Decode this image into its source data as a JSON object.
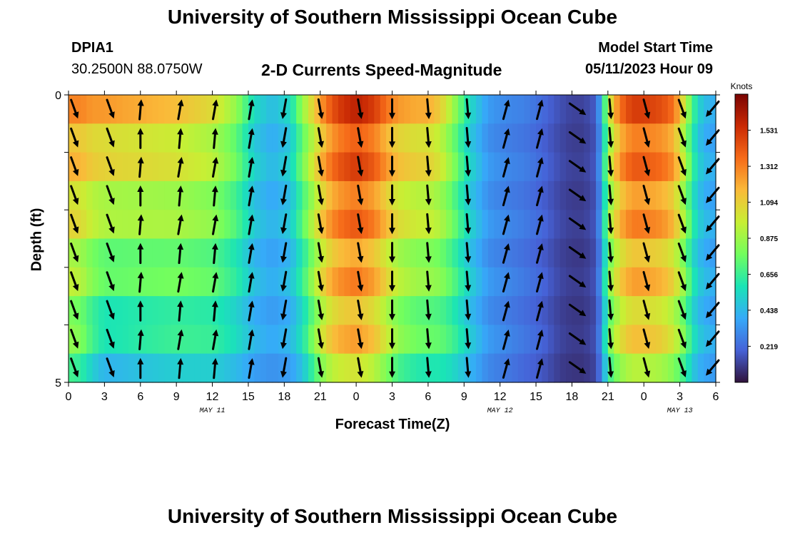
{
  "header": {
    "title": "University of Southern Mississippi Ocean Cube",
    "station_id": "DPIA1",
    "coordinates": "30.2500N  88.0750W",
    "plot_label": "2-D Currents Speed-Magnitude",
    "model_start_label": "Model Start Time",
    "model_start_value": "05/11/2023 Hour 09"
  },
  "footer": {
    "title": "University of Southern Mississippi Ocean Cube"
  },
  "colors": {
    "scale": [
      "#30123b",
      "#4662d7",
      "#36aaf9",
      "#1ae4b6",
      "#72fe5e",
      "#c8ef34",
      "#faba39",
      "#f66b19",
      "#ca2a04",
      "#7a0403"
    ],
    "arrow": "#000000"
  },
  "chart_data": {
    "type": "heatmap",
    "title": "2-D Currents Speed-Magnitude",
    "xlabel": "Forecast Time(Z)",
    "ylabel": "Depth (ft)",
    "x_range_hours": [
      0,
      54
    ],
    "y_range_ft": [
      0,
      5
    ],
    "x_ticks": [
      {
        "hour": 0,
        "label": "0"
      },
      {
        "hour": 3,
        "label": "3"
      },
      {
        "hour": 6,
        "label": "6"
      },
      {
        "hour": 9,
        "label": "9"
      },
      {
        "hour": 12,
        "label": "12"
      },
      {
        "hour": 15,
        "label": "15"
      },
      {
        "hour": 18,
        "label": "18"
      },
      {
        "hour": 21,
        "label": "21"
      },
      {
        "hour": 24,
        "label": "0"
      },
      {
        "hour": 27,
        "label": "3"
      },
      {
        "hour": 30,
        "label": "6"
      },
      {
        "hour": 33,
        "label": "9"
      },
      {
        "hour": 36,
        "label": "12"
      },
      {
        "hour": 39,
        "label": "15"
      },
      {
        "hour": 42,
        "label": "18"
      },
      {
        "hour": 45,
        "label": "21"
      },
      {
        "hour": 48,
        "label": "0"
      },
      {
        "hour": 51,
        "label": "3"
      },
      {
        "hour": 54,
        "label": "6"
      }
    ],
    "y_ticks": [
      {
        "depth": 0,
        "label": "0"
      },
      {
        "depth": 5,
        "label": "5"
      }
    ],
    "date_labels": [
      {
        "hour": 12,
        "label": "MAY 11"
      },
      {
        "hour": 36,
        "label": "MAY 12"
      },
      {
        "hour": 51,
        "label": "MAY 13"
      }
    ],
    "colorbar": {
      "unit": "Knots",
      "min": 0.0,
      "max": 1.75,
      "ticks": [
        0.219,
        0.438,
        0.656,
        0.875,
        1.094,
        1.312,
        1.531
      ],
      "tick_labels": [
        "0.219",
        "0.438",
        "0.656",
        "0.875",
        "1.094",
        "1.312",
        "1.531"
      ]
    },
    "layer_depths_ft": [
      0.25,
      0.75,
      1.25,
      1.75,
      2.25,
      2.75,
      3.25,
      3.75,
      4.25,
      4.75
    ],
    "speed_anchors": {
      "hours": [
        0,
        1,
        2,
        3,
        4.5,
        6,
        9,
        12,
        14,
        15.5,
        17,
        18.5,
        19.5,
        20.5,
        21.5,
        22.5,
        24,
        25.5,
        26.5,
        27.5,
        29,
        30,
        31,
        32,
        33.5,
        35,
        36.5,
        38,
        39.5,
        41,
        42,
        43,
        44,
        44.5,
        45,
        46,
        47,
        48,
        49.5,
        50.5,
        51,
        51.5,
        52,
        52.5,
        53,
        54
      ],
      "surface": [
        1.3,
        1.3,
        1.25,
        1.25,
        1.22,
        1.2,
        1.15,
        1.05,
        0.85,
        0.55,
        0.45,
        0.55,
        0.85,
        1.1,
        1.35,
        1.5,
        1.6,
        1.5,
        1.35,
        1.25,
        1.2,
        1.2,
        1.1,
        0.9,
        0.55,
        0.35,
        0.3,
        0.28,
        0.22,
        0.15,
        0.12,
        0.12,
        0.18,
        0.45,
        0.95,
        1.35,
        1.5,
        1.5,
        1.45,
        1.35,
        1.15,
        0.95,
        0.7,
        0.55,
        0.45,
        0.4
      ],
      "bottom": [
        0.8,
        0.75,
        0.6,
        0.5,
        0.52,
        0.55,
        0.6,
        0.6,
        0.52,
        0.42,
        0.38,
        0.42,
        0.55,
        0.8,
        1.05,
        1.15,
        1.2,
        1.1,
        0.95,
        0.8,
        0.72,
        0.7,
        0.7,
        0.65,
        0.5,
        0.35,
        0.3,
        0.25,
        0.2,
        0.12,
        0.1,
        0.1,
        0.15,
        0.35,
        0.75,
        1.0,
        1.1,
        1.1,
        1.05,
        0.95,
        0.85,
        0.75,
        0.6,
        0.5,
        0.45,
        0.4
      ]
    },
    "speed_depth_profile": [
      1.0,
      0.9,
      1.0,
      0.9,
      1.0,
      0.88,
      1.0,
      0.88,
      1.0,
      0.85
    ],
    "vector_hours": [
      0.5,
      3.5,
      6,
      9.3,
      12.2,
      15.2,
      18,
      21,
      24.3,
      27,
      30,
      33.3,
      36.5,
      39.3,
      42.5,
      45.2,
      48.2,
      51.2,
      53.7
    ],
    "vector_directions_deg": {
      "even_layers": [
        160,
        160,
        5,
        10,
        10,
        10,
        190,
        170,
        170,
        180,
        175,
        175,
        15,
        15,
        125,
        175,
        165,
        160,
        220
      ],
      "odd_layers": [
        160,
        160,
        0,
        5,
        5,
        10,
        190,
        170,
        170,
        180,
        175,
        175,
        15,
        15,
        125,
        175,
        165,
        160,
        220
      ]
    }
  }
}
